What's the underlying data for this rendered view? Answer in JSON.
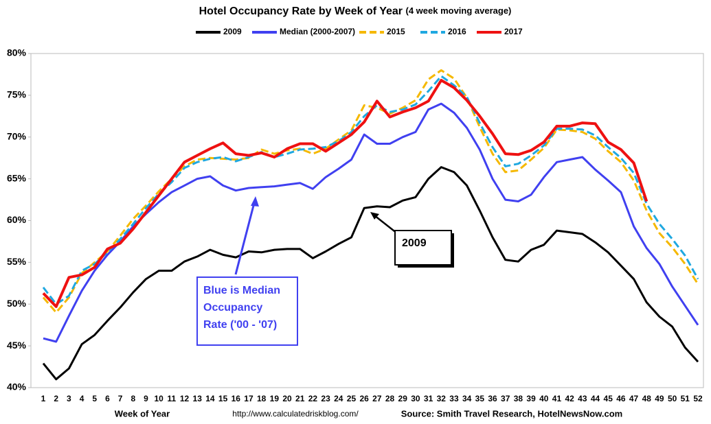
{
  "chart_data": {
    "type": "line",
    "title": "Hotel Occupancy Rate by  Week of Year",
    "subtitle": "(4 week moving average)",
    "x_label": "Week of Year",
    "url": "http://www.calculatedriskblog.com/",
    "source": "Source: Smith Travel Research, HotelNewsNow.com",
    "categories": [
      "1",
      "2",
      "3",
      "4",
      "5",
      "6",
      "7",
      "8",
      "9",
      "10",
      "11",
      "12",
      "13",
      "14",
      "15",
      "16",
      "17",
      "18",
      "19",
      "20",
      "21",
      "22",
      "23",
      "24",
      "25",
      "26",
      "27",
      "28",
      "29",
      "30",
      "31",
      "32",
      "33",
      "34",
      "35",
      "36",
      "37",
      "38",
      "39",
      "40",
      "41",
      "42",
      "43",
      "44",
      "45",
      "46",
      "47",
      "48",
      "49",
      "50",
      "51",
      "52"
    ],
    "ylim": [
      40,
      80
    ],
    "yticks": [
      {
        "value": 40,
        "label": "40%"
      },
      {
        "value": 45,
        "label": "45%"
      },
      {
        "value": 50,
        "label": "50%"
      },
      {
        "value": 55,
        "label": "55%"
      },
      {
        "value": 60,
        "label": "60%"
      },
      {
        "value": 65,
        "label": "65%"
      },
      {
        "value": 70,
        "label": "70%"
      },
      {
        "value": 75,
        "label": "75%"
      },
      {
        "value": 80,
        "label": "80%"
      }
    ],
    "grid": false,
    "legend": "top",
    "series": [
      {
        "name": "2009",
        "color": "#000000",
        "dashed": false,
        "values": [
          42.9,
          41.0,
          42.3,
          45.2,
          46.3,
          48.0,
          49.6,
          51.4,
          53.0,
          54.0,
          54.0,
          55.1,
          55.7,
          56.5,
          55.9,
          55.6,
          56.3,
          56.2,
          56.5,
          56.6,
          56.6,
          55.5,
          56.3,
          57.2,
          58.0,
          61.5,
          61.7,
          61.6,
          62.4,
          62.8,
          65.0,
          66.4,
          65.8,
          64.2,
          61.2,
          58.0,
          55.3,
          55.1,
          56.5,
          57.1,
          58.8,
          58.6,
          58.4,
          57.4,
          56.2,
          54.6,
          53.0,
          50.2,
          48.5,
          47.3,
          44.8,
          43.1
        ]
      },
      {
        "name": "Median (2000-2007)",
        "color": "#4040f0",
        "dashed": false,
        "values": [
          45.9,
          45.5,
          48.6,
          51.6,
          54.0,
          55.9,
          57.5,
          59.3,
          60.8,
          62.2,
          63.4,
          64.2,
          65.0,
          65.3,
          64.2,
          63.6,
          63.9,
          64.0,
          64.1,
          64.3,
          64.5,
          63.8,
          65.2,
          66.2,
          67.3,
          70.3,
          69.2,
          69.2,
          70.0,
          70.6,
          73.3,
          74.0,
          72.9,
          71.1,
          68.5,
          65.0,
          62.5,
          62.3,
          63.1,
          65.2,
          67.0,
          67.3,
          67.6,
          66.1,
          64.8,
          63.4,
          59.3,
          56.7,
          54.8,
          52.1,
          49.8,
          47.5
        ]
      },
      {
        "name": "2015",
        "color": "#f5b800",
        "dashed": true,
        "values": [
          50.8,
          49.0,
          50.8,
          53.7,
          55.0,
          56.3,
          58.2,
          60.2,
          61.8,
          63.5,
          65.0,
          66.5,
          67.3,
          67.5,
          67.4,
          67.3,
          67.5,
          68.5,
          68.0,
          68.4,
          68.6,
          68.0,
          68.6,
          69.7,
          70.8,
          73.8,
          73.5,
          72.8,
          73.5,
          74.4,
          76.9,
          78.0,
          77.0,
          74.7,
          71.2,
          68.0,
          65.8,
          66.0,
          67.3,
          68.7,
          70.9,
          70.8,
          70.6,
          69.8,
          68.3,
          67.0,
          64.8,
          61.2,
          58.5,
          56.8,
          54.8,
          52.4
        ]
      },
      {
        "name": "2016",
        "color": "#1fa8e0",
        "dashed": true,
        "values": [
          52.0,
          50.0,
          51.0,
          54.0,
          54.8,
          56.2,
          57.8,
          59.6,
          61.5,
          63.2,
          64.6,
          66.3,
          67.0,
          67.4,
          67.6,
          67.1,
          67.6,
          68.2,
          67.6,
          68.0,
          68.5,
          68.6,
          68.8,
          69.5,
          70.6,
          72.5,
          73.8,
          73.0,
          73.3,
          73.9,
          75.5,
          77.3,
          76.2,
          74.8,
          71.7,
          68.8,
          66.5,
          66.8,
          67.8,
          69.0,
          71.0,
          71.0,
          70.9,
          70.2,
          68.8,
          67.5,
          65.7,
          62.0,
          59.6,
          57.8,
          55.8,
          53.0
        ]
      },
      {
        "name": "2017",
        "color": "#ee1111",
        "dashed": false,
        "values": [
          51.3,
          49.7,
          53.2,
          53.5,
          54.4,
          56.6,
          57.3,
          59.0,
          61.0,
          63.0,
          65.0,
          67.0,
          67.8,
          68.6,
          69.3,
          68.0,
          67.8,
          68.1,
          67.6,
          68.6,
          69.2,
          69.2,
          68.3,
          69.3,
          70.3,
          71.8,
          74.3,
          72.4,
          73.0,
          73.5,
          74.3,
          76.8,
          75.9,
          74.4,
          72.5,
          70.4,
          68.0,
          67.9,
          68.4,
          69.4,
          71.3,
          71.3,
          71.7,
          71.6,
          69.4,
          68.5,
          66.9,
          62.3,
          null,
          null,
          null,
          null
        ]
      }
    ],
    "annotations": [
      {
        "lines": [
          "Blue is Median",
          "Occupancy",
          "Rate ('00 - '07)"
        ],
        "color": "#4040f0"
      },
      {
        "lines": [
          "2009"
        ],
        "color": "#000000"
      }
    ]
  }
}
